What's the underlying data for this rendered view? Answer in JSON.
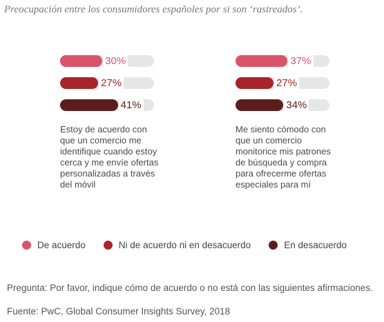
{
  "title": "Preocupación entre los consumidores españoles por si son ‘rastreados’.",
  "colors": {
    "de_acuerdo": "#d9536a",
    "ni_de_acuerdo": "#a8232b",
    "en_desacuerdo": "#5b1e1c",
    "track": "#e6e6e6"
  },
  "chart_data": {
    "type": "bar",
    "orientation": "horizontal",
    "categories": [
      "Estoy de acuerdo con que un comercio me identifique cuando estoy cerca y me envíe ofertas personalizadas a través del móvil",
      "Me siento cómodo con que un comercio monitorice mis patrones de búsqueda y compra para ofrecerme ofertas especiales para mí"
    ],
    "series": [
      {
        "name": "De acuerdo",
        "values": [
          30,
          37
        ],
        "labels": [
          "30%",
          "37%"
        ]
      },
      {
        "name": "Ni de acuerdo ni en desacuerdo",
        "values": [
          27,
          27
        ],
        "labels": [
          "27%",
          "27%"
        ]
      },
      {
        "name": "En desacuerdo",
        "values": [
          41,
          34
        ],
        "labels": [
          "41%",
          "34%"
        ]
      }
    ],
    "xlim": [
      0,
      100
    ],
    "legend_position": "bottom"
  },
  "statements": [
    "Estoy de acuerdo con que un comercio me identifique cuando estoy cerca y me envíe ofertas personalizadas a través del móvil",
    "Me siento cómodo con que un comercio monitorice mis patrones de búsqueda y compra para ofrecerme ofertas especiales para mí"
  ],
  "legend": [
    {
      "label": "De acuerdo",
      "color": "#d9536a"
    },
    {
      "label": "Ni de acuerdo ni en desacuerdo",
      "color": "#a8232b"
    },
    {
      "label": "En desacuerdo",
      "color": "#5b1e1c"
    }
  ],
  "question": "Pregunta: Por favor, indique cómo de acuerdo o no está con las siguientes afirmaciones.",
  "source": "Fuente: PwC, Global Consumer Insights Survey, 2018"
}
